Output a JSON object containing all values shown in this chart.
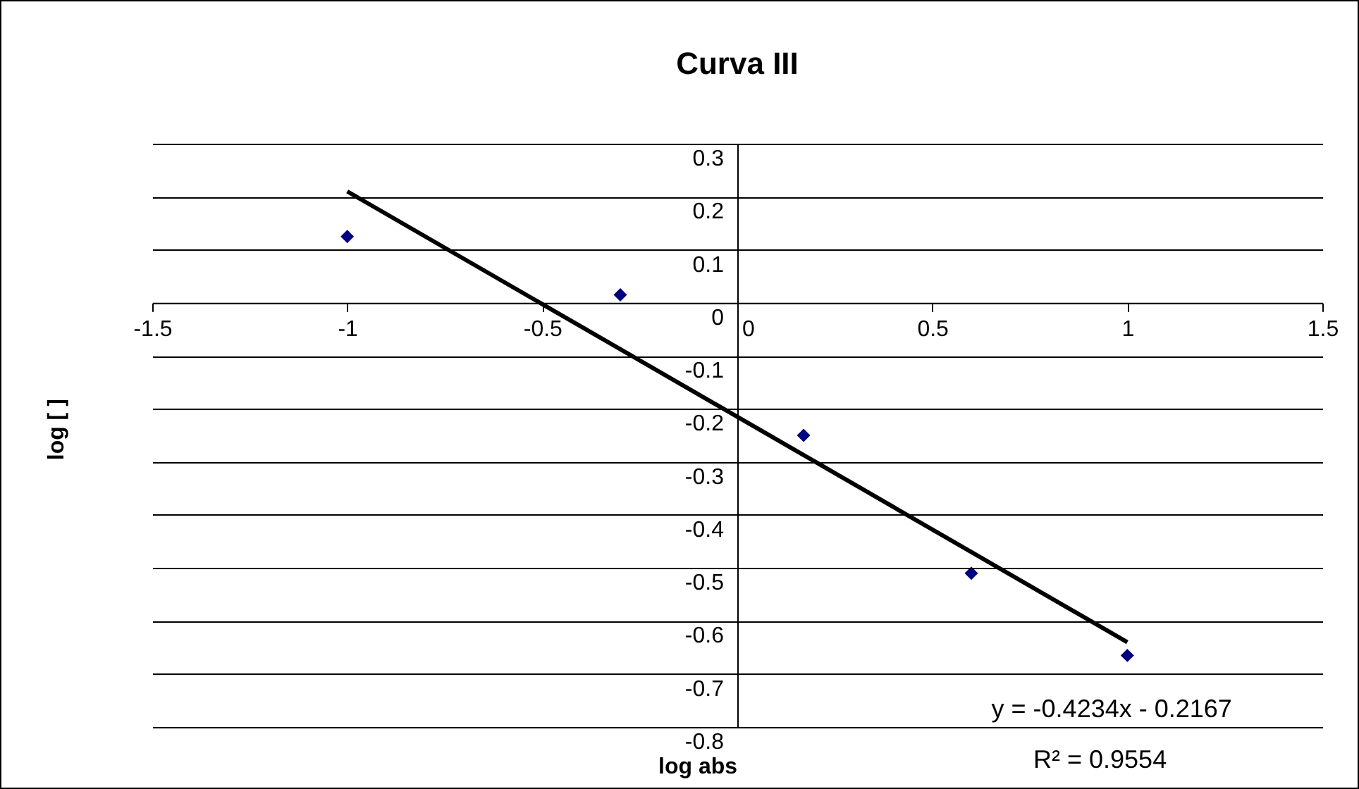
{
  "chart_data": {
    "type": "scatter",
    "title": "Curva III",
    "xlabel": "log abs",
    "ylabel": "log [ ]",
    "series": [
      {
        "color": "#000080",
        "x": [
          -1.0,
          -0.3,
          0.17,
          0.6,
          1.0
        ],
        "values": [
          0.125,
          0.015,
          -0.25,
          -0.51,
          -0.665
        ]
      },
      {
        "type": "line",
        "color": "#000000",
        "marker": "none",
        "x": [
          -1,
          1
        ],
        "values": [
          0.21,
          -0.64
        ]
      }
    ],
    "xlim": [
      -1.5,
      1.5
    ],
    "xticks": [
      -1.5,
      -1,
      -0.5,
      0,
      0.5,
      1,
      1.5
    ],
    "ylim": [
      -0.8,
      0.3
    ],
    "yticks": [
      -0.8,
      -0.7,
      -0.6,
      -0.5,
      -0.4,
      -0.3,
      -0.2,
      -0.1,
      0,
      0.1,
      0.2,
      0.3
    ],
    "grid": "y",
    "marker": "diamond",
    "line_style": "solid",
    "annotations": [
      "y = -0.4234x - 0.2167",
      "R² = 0.9554"
    ]
  }
}
